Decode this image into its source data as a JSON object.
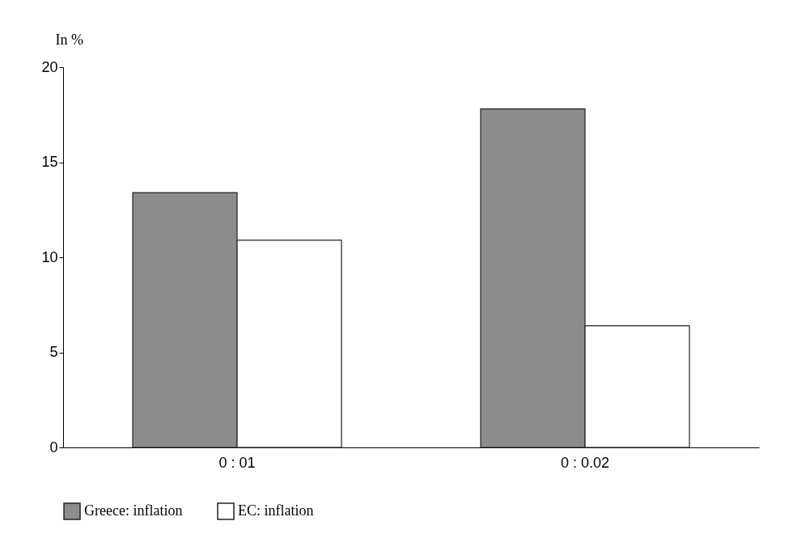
{
  "chart_data": {
    "type": "bar",
    "ylabel": "In %",
    "categories": [
      "0 : 01",
      "0 : 0.02"
    ],
    "series": [
      {
        "name": "Greece: inflation",
        "color": "#8c8c8c",
        "values": [
          13.4,
          17.8
        ]
      },
      {
        "name": "EC: inflation",
        "color": "#ffffff",
        "values": [
          10.9,
          6.4
        ]
      }
    ],
    "ylim": [
      0,
      20
    ],
    "yticks": [
      0,
      5,
      10,
      15,
      20
    ],
    "grid": false,
    "legend": "bottom"
  }
}
